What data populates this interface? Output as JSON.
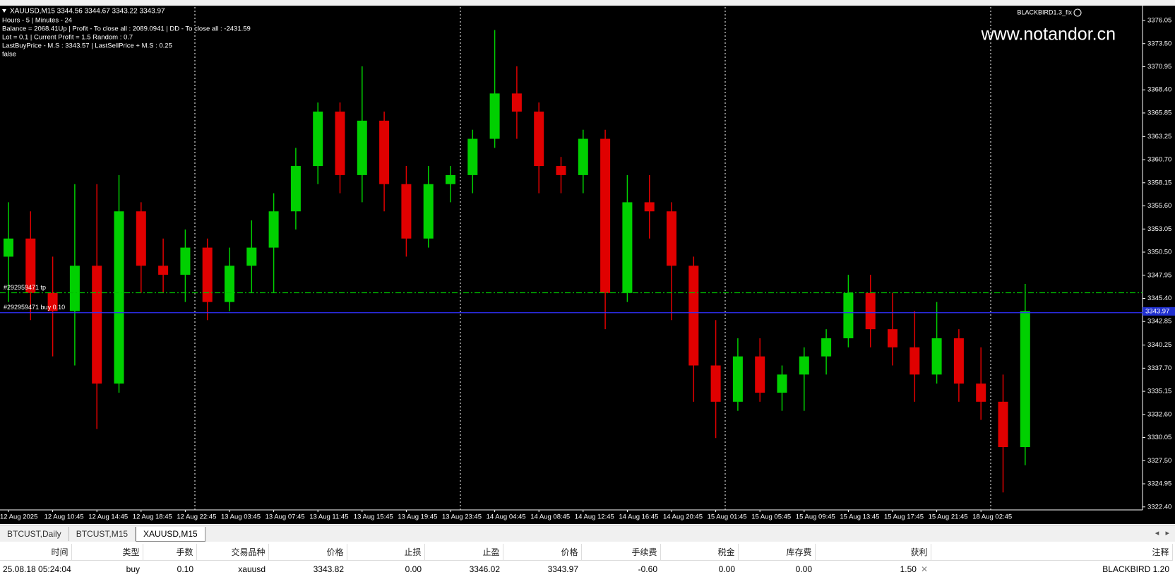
{
  "chart_data": {
    "type": "candlestick",
    "title": "XAUUSD,M15  3344.56 3344.67 3343.22 3343.97",
    "info_lines": [
      "Hours - 5 | Minutes - 24",
      "Balance = 2068.41Up | Profit - To close all : 2089.0941 | DD - To close all : -2431.59",
      "Lot = 0.1 | Current Profit = 1.5 Random : 0.7",
      "LastBuyPrice - M.S : 3343.57 | LastSellPrice + M.S : 0.25",
      "false"
    ],
    "indicator": "BLACKBIRD1.3_fix",
    "watermark": "www.notandor.cn",
    "up_color": "#00d000",
    "down_color": "#e00000",
    "categories": [
      "12 Aug 2025",
      null,
      "12 Aug 10:45",
      null,
      "12 Aug 14:45",
      null,
      "12 Aug 18:45",
      null,
      "12 Aug 22:45",
      null,
      "13 Aug 03:45",
      null,
      "13 Aug 07:45",
      null,
      "13 Aug 11:45",
      null,
      "13 Aug 15:45",
      null,
      "13 Aug 19:45",
      null,
      "13 Aug 23:45",
      null,
      "14 Aug 04:45",
      null,
      "14 Aug 08:45",
      null,
      "14 Aug 12:45",
      null,
      "14 Aug 16:45",
      null,
      "14 Aug 20:45",
      null,
      "15 Aug 01:45",
      null,
      "15 Aug 05:45",
      null,
      "15 Aug 09:45",
      null,
      "15 Aug 13:45",
      null,
      "15 Aug 17:45",
      null,
      "15 Aug 21:45",
      null,
      "18 Aug 02:45",
      null,
      null
    ],
    "open": [
      3350,
      3352,
      3346,
      3344,
      3349,
      3336,
      3355,
      3349,
      3348,
      3351,
      3345,
      3349,
      3351,
      3355,
      3360,
      3366,
      3359,
      3365,
      3358,
      3352,
      3358,
      3359,
      3363,
      3368,
      3366,
      3360,
      3359,
      3363,
      3346,
      3356,
      3355,
      3349,
      3338,
      3334,
      3339,
      3335,
      3337,
      3339,
      3341,
      3346,
      3342,
      3340,
      3337,
      3341,
      3336,
      3334,
      3329
    ],
    "high": [
      3356,
      3355,
      3350,
      3358,
      3358,
      3359,
      3356,
      3352,
      3353,
      3352,
      3351,
      3354,
      3357,
      3362,
      3367,
      3367,
      3371,
      3366,
      3360,
      3360,
      3360,
      3364,
      3375,
      3371,
      3367,
      3361,
      3364,
      3364,
      3359,
      3359,
      3356,
      3350,
      3343,
      3341,
      3341,
      3338,
      3340,
      3342,
      3348,
      3348,
      3346,
      3344,
      3345,
      3342,
      3340,
      3337,
      3347
    ],
    "low": [
      3345,
      3343,
      3339,
      3338,
      3331,
      3335,
      3346,
      3346,
      3345,
      3343,
      3344,
      3346,
      3346,
      3353,
      3358,
      3357,
      3356,
      3355,
      3350,
      3351,
      3356,
      3357,
      3362,
      3363,
      3357,
      3357,
      3357,
      3342,
      3345,
      3352,
      3343,
      3334,
      3330,
      3333,
      3334,
      3333,
      3333,
      3337,
      3340,
      3340,
      3338,
      3334,
      3336,
      3334,
      3332,
      3324,
      3327
    ],
    "close": [
      3352,
      3346,
      3344,
      3349,
      3336,
      3355,
      3349,
      3348,
      3351,
      3345,
      3349,
      3351,
      3355,
      3360,
      3366,
      3359,
      3365,
      3358,
      3352,
      3358,
      3359,
      3363,
      3368,
      3366,
      3360,
      3359,
      3363,
      3346,
      3356,
      3355,
      3349,
      3338,
      3334,
      3339,
      3335,
      3337,
      3339,
      3341,
      3346,
      3342,
      3340,
      3337,
      3341,
      3336,
      3334,
      3329,
      3344
    ],
    "ylim": [
      3322.07,
      3377.53
    ],
    "yticks": [
      3376.05,
      {
        "value": 3373.5,
        "label": "3373.50"
      },
      3370.95,
      {
        "value": 3368.4,
        "label": "3368.40"
      },
      3365.85,
      3363.25,
      {
        "value": 3360.7,
        "label": "3360.70"
      },
      3358.15,
      {
        "value": 3355.6,
        "label": "3355.60"
      },
      3353.05,
      {
        "value": 3350.5,
        "label": "3350.50"
      },
      3347.95,
      {
        "value": 3345.4,
        "label": "3345.40"
      },
      3342.85,
      3340.25,
      {
        "value": 3337.7,
        "label": "3337.70"
      },
      3335.15,
      {
        "value": 3332.6,
        "label": "3332.60"
      },
      3330.05,
      {
        "value": 3327.5,
        "label": "3327.50"
      },
      3324.95,
      {
        "value": 3322.4,
        "label": "3322.40"
      }
    ],
    "price_lines": [
      {
        "label": "#292959471 tp",
        "value": 3346.02,
        "color": "#00c000"
      },
      {
        "label": "#292959471 buy 0.10",
        "value": 3343.82,
        "color": "#3030ff"
      }
    ],
    "current_price": 3343.97
  },
  "tabs": [
    "BTCUST,Daily",
    "BTCUST,M15",
    "XAUUSD,M15"
  ],
  "table": {
    "columns": [
      "时间",
      "类型",
      "手数",
      "交易品种",
      "价格",
      "止损",
      "止盈",
      "价格",
      "手续费",
      "税金",
      "库存费",
      "获利",
      "注释"
    ],
    "rows": [
      [
        "25.08.18 05:24:04",
        "buy",
        "0.10",
        "xauusd",
        "3343.82",
        "0.00",
        "3346.02",
        "3343.97",
        "-0.60",
        "0.00",
        "0.00",
        "1.50",
        "BLACKBIRD 1.20"
      ]
    ]
  }
}
